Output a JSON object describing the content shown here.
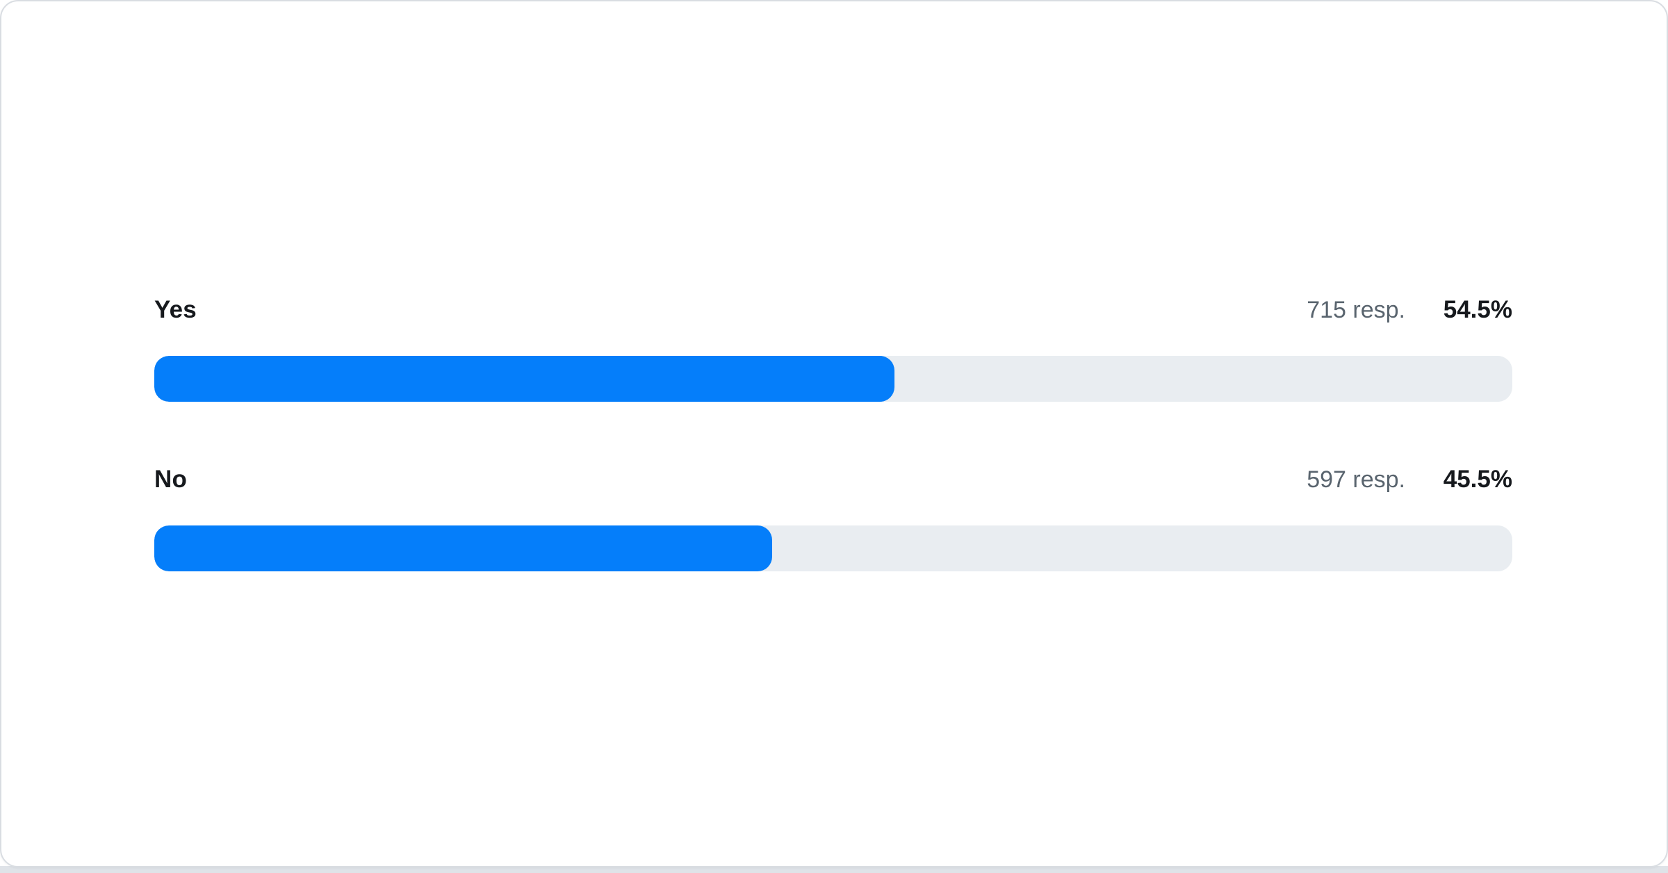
{
  "colors": {
    "bar_fill": "#057efa",
    "bar_track": "#e9edf1",
    "label_text": "#16191d",
    "responses_text": "#59646e",
    "card_border": "#d9dde2",
    "card_background": "#ffffff",
    "page_strip": "#dfe3e8"
  },
  "chart_data": {
    "type": "bar",
    "orientation": "horizontal",
    "title": "",
    "xlabel": "",
    "ylabel": "",
    "categories": [
      "Yes",
      "No"
    ],
    "series": [
      {
        "name": "responses",
        "values": [
          715,
          597
        ]
      },
      {
        "name": "percent",
        "values": [
          54.5,
          45.5
        ]
      }
    ],
    "value_labels": [
      "715 resp.",
      "597 resp."
    ],
    "percent_labels": [
      "54.5%",
      "45.5%"
    ],
    "xlim": [
      0,
      100
    ],
    "grid": false,
    "legend": false
  },
  "rows": [
    {
      "label": "Yes",
      "responses_text": "715 resp.",
      "percent_text": "54.5%",
      "percent": 54.5
    },
    {
      "label": "No",
      "responses_text": "597 resp.",
      "percent_text": "45.5%",
      "percent": 45.5
    }
  ]
}
